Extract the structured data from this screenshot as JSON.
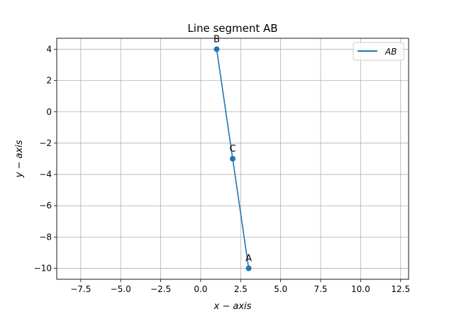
{
  "chart_data": {
    "type": "line",
    "title": "Line segment AB",
    "xlabel": "x − axis",
    "ylabel": "y − axis",
    "xlim": [
      -9,
      13
    ],
    "ylim": [
      -10.7,
      4.7
    ],
    "xticks": [
      -7.5,
      -5.0,
      -2.5,
      0.0,
      2.5,
      5.0,
      7.5,
      10.0,
      12.5
    ],
    "xtick_labels": [
      "−7.5",
      "−5.0",
      "−2.5",
      "0.0",
      "2.5",
      "5.0",
      "7.5",
      "10.0",
      "12.5"
    ],
    "yticks": [
      4,
      2,
      0,
      -2,
      -4,
      -6,
      -8,
      -10
    ],
    "ytick_labels": [
      "4",
      "2",
      "0",
      "−2",
      "−4",
      "−6",
      "−8",
      "−10"
    ],
    "grid": true,
    "legend_position": "top-right",
    "series": [
      {
        "name": "AB",
        "color": "#1f77b4",
        "x": [
          3,
          1
        ],
        "y": [
          -10,
          4
        ]
      }
    ],
    "points": [
      {
        "label": "A",
        "x": 3,
        "y": -10
      },
      {
        "label": "B",
        "x": 1,
        "y": 4
      },
      {
        "label": "C",
        "x": 2,
        "y": -3
      }
    ]
  }
}
